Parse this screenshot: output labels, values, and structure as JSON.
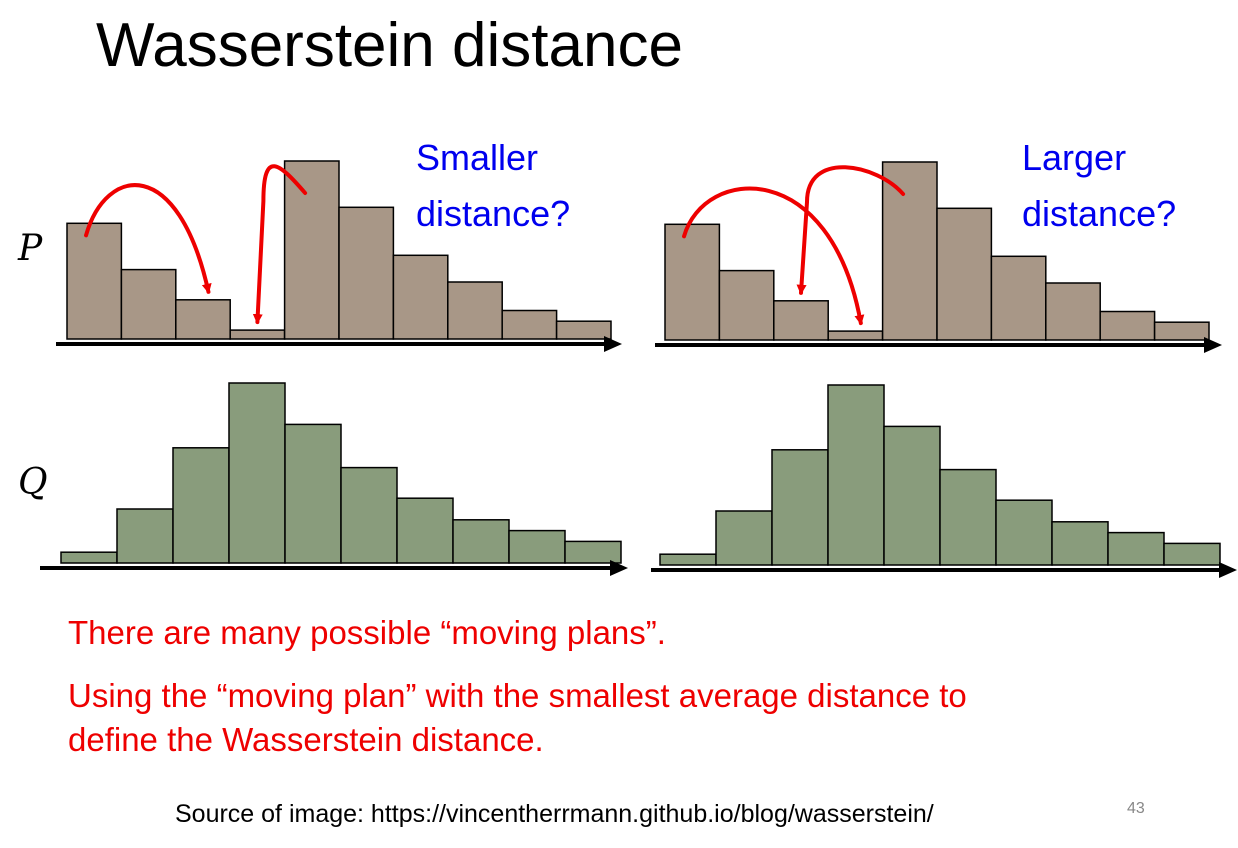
{
  "title": "Wasserstein distance",
  "labels": {
    "p": "P",
    "q": "Q"
  },
  "captions": {
    "left": [
      "Smaller",
      "distance?"
    ],
    "right": [
      "Larger",
      "distance?"
    ]
  },
  "notes": [
    "There are many possible “moving plans”.",
    "Using the “moving plan” with the smallest average distance to",
    "define the Wasserstein distance."
  ],
  "source": "Source of image: https://vincentherrmann.github.io/blog/wasserstein/",
  "page_number": "43",
  "colors": {
    "p_bar": "#a89787",
    "q_bar": "#899c7c",
    "arrow": "#ee0000",
    "caption": "#0000ee",
    "note": "#ee0000"
  },
  "chart_data": {
    "type": "bar",
    "distributions": {
      "P": [
        0.65,
        0.39,
        0.22,
        0.05,
        1.0,
        0.74,
        0.47,
        0.32,
        0.16,
        0.1
      ],
      "Q": [
        0.06,
        0.3,
        0.64,
        1.0,
        0.77,
        0.53,
        0.36,
        0.24,
        0.18,
        0.12
      ]
    },
    "panels": [
      {
        "caption": "Smaller distance?",
        "moves": [
          {
            "from_bin": 0,
            "to_bin": 2
          },
          {
            "from_bin": 4,
            "to_bin": 3
          }
        ]
      },
      {
        "caption": "Larger distance?",
        "moves": [
          {
            "from_bin": 0,
            "to_bin": 3
          },
          {
            "from_bin": 4,
            "to_bin": 2
          }
        ]
      }
    ]
  }
}
